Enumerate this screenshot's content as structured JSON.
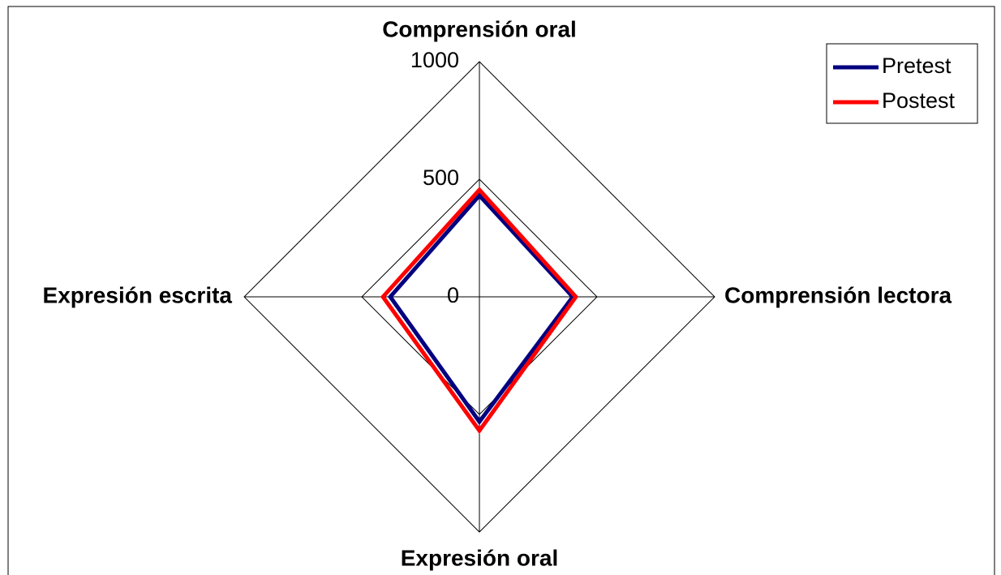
{
  "chart_data": {
    "type": "radar",
    "categories": [
      "Comprensión oral",
      "Comprensión lectora",
      "Expresión oral",
      "Expresión escrita"
    ],
    "series": [
      {
        "name": "Pretest",
        "color": "#000080",
        "values": [
          431,
          397,
          531,
          379
        ]
      },
      {
        "name": "Postest",
        "color": "#ff0000",
        "values": [
          455,
          410,
          569,
          410
        ]
      }
    ],
    "ylim": [
      0,
      1000
    ],
    "yticks": [
      0,
      500,
      1000
    ],
    "grid": true,
    "legend": "upper right"
  }
}
